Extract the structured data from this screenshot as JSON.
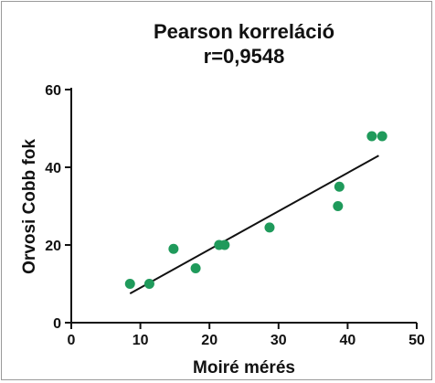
{
  "chart_data": {
    "type": "scatter",
    "title": "Pearson korreláció",
    "subtitle": "r=0,9548",
    "xlabel": "Moiré mérés",
    "ylabel": "Orvosi Cobb fok",
    "xlim": [
      0,
      50
    ],
    "ylim": [
      0,
      60
    ],
    "x_ticks": [
      0,
      10,
      20,
      30,
      40,
      50
    ],
    "y_ticks": [
      0,
      20,
      40,
      60
    ],
    "x_tick_labels": [
      "0",
      "10",
      "20",
      "30",
      "40",
      "50"
    ],
    "y_tick_labels": [
      "0",
      "20",
      "40",
      "60"
    ],
    "grid": false,
    "points": [
      {
        "x": 8.5,
        "y": 10
      },
      {
        "x": 11.3,
        "y": 10
      },
      {
        "x": 14.8,
        "y": 19
      },
      {
        "x": 18.0,
        "y": 14
      },
      {
        "x": 21.4,
        "y": 20
      },
      {
        "x": 22.2,
        "y": 20
      },
      {
        "x": 28.7,
        "y": 24.5
      },
      {
        "x": 38.6,
        "y": 30
      },
      {
        "x": 38.8,
        "y": 35
      },
      {
        "x": 43.5,
        "y": 48
      },
      {
        "x": 45.0,
        "y": 48
      }
    ],
    "fit_line": {
      "x": [
        8.5,
        44.5
      ],
      "y": [
        7.5,
        43
      ]
    },
    "point_color": "#1f9a5b",
    "line_color": "#111111"
  }
}
